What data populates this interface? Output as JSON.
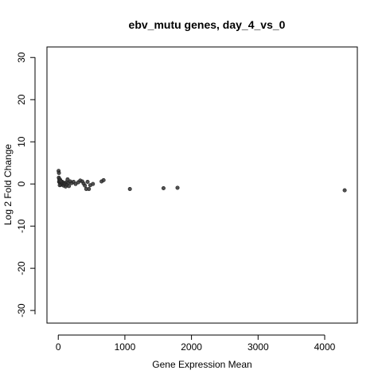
{
  "chart_data": {
    "type": "scatter",
    "title": "ebv_mutu genes, day_4_vs_0",
    "xlabel": "Gene Expression Mean",
    "ylabel": "Log 2 Fold Change",
    "xlim": [
      -170,
      4490
    ],
    "ylim": [
      -33,
      32.5
    ],
    "x_ticks": [
      0,
      1000,
      2000,
      3000,
      4000
    ],
    "y_ticks": [
      -30,
      -20,
      -10,
      0,
      10,
      20,
      30
    ],
    "x_tick_labels": [
      "0",
      "1000",
      "2000",
      "3000",
      "4000"
    ],
    "y_tick_labels": [
      "-30",
      "-20",
      "-10",
      "0",
      "10",
      "20",
      "30"
    ],
    "grid": false,
    "legend": "none",
    "point_color": "#333333",
    "points": [
      {
        "x": 5,
        "y": 3.1
      },
      {
        "x": 10,
        "y": 2.6
      },
      {
        "x": 8,
        "y": 1.5
      },
      {
        "x": 15,
        "y": 1.2
      },
      {
        "x": 20,
        "y": 0.9
      },
      {
        "x": 12,
        "y": 0.5
      },
      {
        "x": 25,
        "y": 0.3
      },
      {
        "x": 30,
        "y": 0.6
      },
      {
        "x": 35,
        "y": 0.1
      },
      {
        "x": 40,
        "y": -0.2
      },
      {
        "x": 45,
        "y": 0.4
      },
      {
        "x": 50,
        "y": 0.2
      },
      {
        "x": 55,
        "y": -0.1
      },
      {
        "x": 60,
        "y": 0.5
      },
      {
        "x": 65,
        "y": 0.0
      },
      {
        "x": 70,
        "y": 0.3
      },
      {
        "x": 18,
        "y": 0.8
      },
      {
        "x": 28,
        "y": 1.0
      },
      {
        "x": 22,
        "y": -0.3
      },
      {
        "x": 38,
        "y": 0.7
      },
      {
        "x": 80,
        "y": -0.4
      },
      {
        "x": 90,
        "y": 0.2
      },
      {
        "x": 100,
        "y": 0.1
      },
      {
        "x": 110,
        "y": -0.6
      },
      {
        "x": 120,
        "y": 0.4
      },
      {
        "x": 130,
        "y": -0.2
      },
      {
        "x": 140,
        "y": 1.1
      },
      {
        "x": 150,
        "y": 0.3
      },
      {
        "x": 160,
        "y": -0.5
      },
      {
        "x": 180,
        "y": 0.6
      },
      {
        "x": 200,
        "y": 0.2
      },
      {
        "x": 230,
        "y": 0.5
      },
      {
        "x": 260,
        "y": 0.0
      },
      {
        "x": 300,
        "y": 0.4
      },
      {
        "x": 330,
        "y": 0.8
      },
      {
        "x": 360,
        "y": 0.6
      },
      {
        "x": 380,
        "y": 0.1
      },
      {
        "x": 400,
        "y": -0.4
      },
      {
        "x": 420,
        "y": -1.2
      },
      {
        "x": 440,
        "y": 0.5
      },
      {
        "x": 460,
        "y": -1.2
      },
      {
        "x": 480,
        "y": -0.3
      },
      {
        "x": 520,
        "y": 0.0
      },
      {
        "x": 650,
        "y": 0.6
      },
      {
        "x": 680,
        "y": 0.9
      },
      {
        "x": 1075,
        "y": -1.2
      },
      {
        "x": 1580,
        "y": -1.0
      },
      {
        "x": 1790,
        "y": -0.9
      },
      {
        "x": 4300,
        "y": -1.5
      }
    ]
  }
}
